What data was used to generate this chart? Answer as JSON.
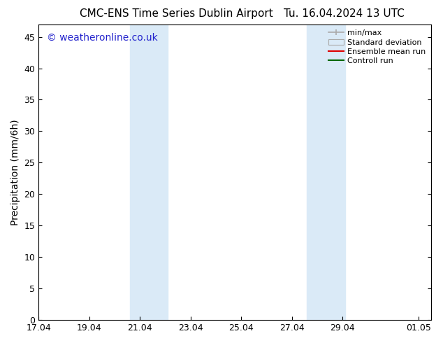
{
  "title_left": "CMC-ENS Time Series Dublin Airport",
  "title_right": "Tu. 16.04.2024 13 UTC",
  "ylabel": "Precipitation (mm/6h)",
  "watermark": "© weatheronline.co.uk",
  "background_color": "#ffffff",
  "plot_bg_color": "#ffffff",
  "shade_color": "#daeaf7",
  "ylim": [
    0,
    47
  ],
  "yticks": [
    0,
    5,
    10,
    15,
    20,
    25,
    30,
    35,
    40,
    45
  ],
  "xlim": [
    0,
    15.5
  ],
  "shaded_regions": [
    {
      "x0_day": 3.6,
      "x1_day": 5.1
    },
    {
      "x0_day": 10.6,
      "x1_day": 12.1
    }
  ],
  "xtick_labels": [
    "17.04",
    "19.04",
    "21.04",
    "23.04",
    "25.04",
    "27.04",
    "29.04",
    "01.05"
  ],
  "xtick_positions": [
    0,
    2,
    4,
    6,
    8,
    10,
    12,
    15
  ],
  "legend_entries": [
    {
      "label": "min/max",
      "color": "#aaaaaa",
      "style": "minmax"
    },
    {
      "label": "Standard deviation",
      "color": "#daeaf7",
      "style": "fill"
    },
    {
      "label": "Ensemble mean run",
      "color": "#dd0000",
      "style": "line"
    },
    {
      "label": "Controll run",
      "color": "#006600",
      "style": "line"
    }
  ],
  "title_fontsize": 11,
  "axis_fontsize": 10,
  "tick_fontsize": 9,
  "legend_fontsize": 8,
  "watermark_color": "#2222cc",
  "watermark_fontsize": 10
}
